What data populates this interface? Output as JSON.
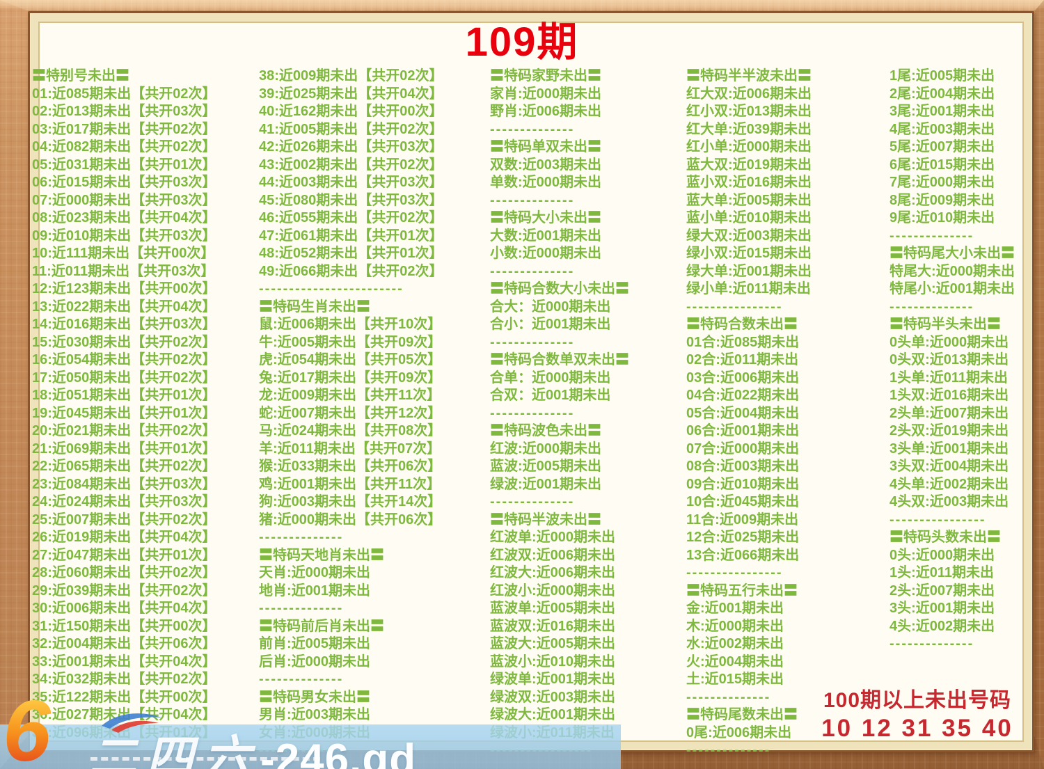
{
  "title": "109期",
  "colors": {
    "text_green": "#7fb83e",
    "title_red": "#e8000c",
    "footer_red": "#c5282f",
    "paper": "#fffdf3",
    "wood": "#bd7e4b",
    "watermark_band": "#a8d5f1"
  },
  "columns": [
    {
      "name": "special-numbers-01-37",
      "lines": [
        "〓特别号未出〓",
        "01:近085期未出【共开02次】",
        "02:近013期未出【共开03次】",
        "03:近017期未出【共开02次】",
        "04:近082期未出【共开02次】",
        "05:近031期未出【共开01次】",
        "06:近015期未出【共开03次】",
        "07:近000期未出【共开03次】",
        "08:近023期未出【共开04次】",
        "09:近010期未出【共开03次】",
        "10:近111期未出【共开00次】",
        "11:近011期未出【共开03次】",
        "12:近123期未出【共开00次】",
        "13:近022期未出【共开04次】",
        "14:近016期未出【共开03次】",
        "15:近030期未出【共开02次】",
        "16:近054期未出【共开02次】",
        "17:近050期未出【共开02次】",
        "18:近051期未出【共开01次】",
        "19:近045期未出【共开01次】",
        "20:近021期未出【共开02次】",
        "21:近069期未出【共开01次】",
        "22:近065期未出【共开02次】",
        "23:近084期未出【共开03次】",
        "24:近024期未出【共开03次】",
        "25:近007期未出【共开02次】",
        "26:近019期未出【共开04次】",
        "27:近047期未出【共开01次】",
        "28:近060期未出【共开02次】",
        "29:近039期未出【共开02次】",
        "30:近006期未出【共开04次】",
        "31:近150期未出【共开00次】",
        "32:近004期未出【共开06次】",
        "33:近001期未出【共开04次】",
        "34:近032期未出【共开02次】",
        "35:近122期未出【共开00次】",
        "36:近027期未出【共开04次】",
        "37:近096期未出【共开01次】"
      ]
    },
    {
      "name": "numbers-38-49-and-zodiac",
      "lines": [
        "38:近009期未出【共开02次】",
        "39:近025期未出【共开04次】",
        "40:近162期未出【共开00次】",
        "41:近005期未出【共开02次】",
        "42:近026期未出【共开03次】",
        "43:近002期未出【共开02次】",
        "44:近003期未出【共开03次】",
        "45:近080期未出【共开03次】",
        "46:近055期未出【共开02次】",
        "47:近061期未出【共开01次】",
        "48:近052期未出【共开01次】",
        "49:近066期未出【共开02次】",
        "------------------------",
        "〓特码生肖未出〓",
        "鼠:近006期未出【共开10次】",
        "牛:近005期未出【共开09次】",
        "虎:近054期未出【共开05次】",
        "兔:近017期未出【共开09次】",
        "龙:近009期未出【共开11次】",
        "蛇:近007期未出【共开12次】",
        "马:近024期未出【共开08次】",
        "羊:近011期未出【共开07次】",
        "猴:近033期未出【共开06次】",
        "鸡:近001期未出【共开11次】",
        "狗:近003期未出【共开14次】",
        "猪:近000期未出【共开06次】",
        "--------------",
        "〓特码天地肖未出〓",
        "天肖:近000期未出",
        "地肖:近001期未出",
        "--------------",
        "〓特码前后肖未出〓",
        "前肖:近005期未出",
        "后肖:近000期未出",
        "--------------",
        "〓特码男女未出〓",
        "男肖:近003期未出",
        "女肖:近000期未出",
        "--------------"
      ]
    },
    {
      "name": "attributes-oddeven-size-waves",
      "lines": [
        "〓特码家野未出〓",
        "家肖:近000期未出",
        "野肖:近006期未出",
        "--------------",
        "〓特码单双未出〓",
        "双数:近003期未出",
        "单数:近000期未出",
        "--------------",
        "〓特码大小未出〓",
        "大数:近001期未出",
        "小数:近000期未出",
        "--------------",
        "〓特码合数大小未出〓",
        "合大：近000期未出",
        "合小：近001期未出",
        "--------------",
        "〓特码合数单双未出〓",
        "合单：近000期未出",
        "合双：近001期未出",
        "--------------",
        "〓特码波色未出〓",
        "红波:近000期未出",
        "蓝波:近005期未出",
        "绿波:近001期未出",
        "--------------",
        "〓特码半波未出〓",
        "红波单:近000期未出",
        "红波双:近006期未出",
        "红波大:近006期未出",
        "红波小:近000期未出",
        "蓝波单:近005期未出",
        "蓝波双:近016期未出",
        "蓝波大:近005期未出",
        "蓝波小:近010期未出",
        "绿波单:近001期未出",
        "绿波双:近003期未出",
        "绿波大:近001期未出",
        "绿波小:近011期未出",
        "-----------------"
      ]
    },
    {
      "name": "halfhalf-wave-sum-elements",
      "lines": [
        "〓特码半半波未出〓",
        "红大双:近006期未出",
        "红小双:近013期未出",
        "红大单:近039期未出",
        "红小单:近000期未出",
        "蓝大双:近019期未出",
        "蓝小双:近016期未出",
        "蓝大单:近005期未出",
        "蓝小单:近010期未出",
        "绿大双:近003期未出",
        "绿小双:近015期未出",
        "绿大单:近001期未出",
        "绿小单:近011期未出",
        "----------------",
        "〓特码合数未出〓",
        "01合:近085期未出",
        "02合:近011期未出",
        "03合:近006期未出",
        "04合:近022期未出",
        "05合:近004期未出",
        "06合:近001期未出",
        "07合:近000期未出",
        "08合:近003期未出",
        "09合:近010期未出",
        "10合:近045期未出",
        "11合:近009期未出",
        "12合:近025期未出",
        "13合:近066期未出",
        "----------------",
        "〓特码五行未出〓",
        "金:近001期未出",
        "木:近000期未出",
        "水:近002期未出",
        "火:近004期未出",
        "土:近015期未出",
        "--------------",
        "〓特码尾数未出〓",
        "0尾:近006期未出",
        "--------------"
      ]
    },
    {
      "name": "tails-and-heads",
      "lines": [
        "1尾:近005期未出",
        "2尾:近004期未出",
        "3尾:近001期未出",
        "4尾:近003期未出",
        "5尾:近007期未出",
        "6尾:近015期未出",
        "7尾:近000期未出",
        "8尾:近009期未出",
        "9尾:近010期未出",
        "--------------",
        "〓特码尾大小未出〓",
        "特尾大:近000期未出",
        "特尾小:近001期未出",
        "--------------",
        "〓特码半头未出〓",
        "0头单:近000期未出",
        "0头双:近013期未出",
        "1头单:近011期未出",
        "1头双:近016期未出",
        "2头单:近007期未出",
        "2头双:近019期未出",
        "3头单:近001期未出",
        "3头双:近004期未出",
        "4头单:近002期未出",
        "4头双:近003期未出",
        "----------------",
        "〓特码头数未出〓",
        "0头:近000期未出",
        "1头:近011期未出",
        "2头:近007期未出",
        "3头:近001期未出",
        "4头:近002期未出",
        "--------------"
      ]
    }
  ],
  "footer": {
    "line1": "100期以上未出号码",
    "line2": "10 12 31 35 40"
  },
  "watermark": {
    "logo_number": "6",
    "brand": "二四六",
    "domain": "-246.gd"
  }
}
